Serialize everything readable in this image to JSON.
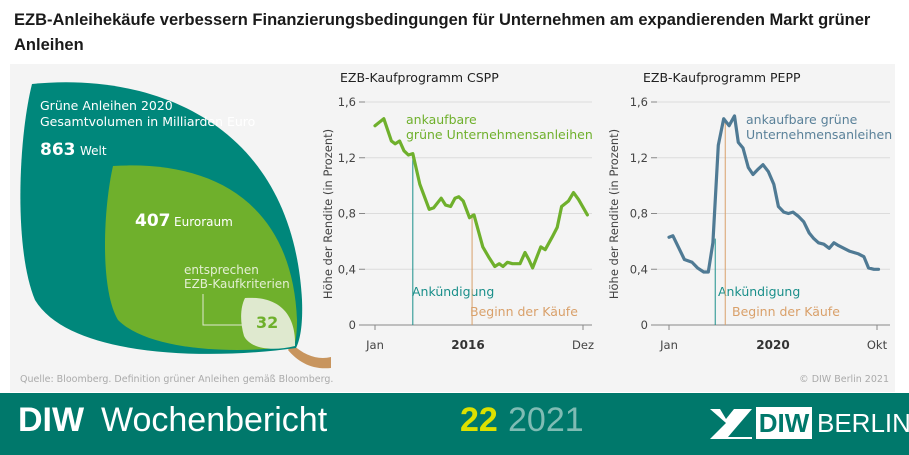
{
  "title": "EZB-Anleihekäufe verbessern Finanzierungsbedingungen für Unternehmen am expandierenden Markt grüner Anleihen",
  "leaf_graphic": {
    "heading_line1": "Grüne Anleihen 2020",
    "heading_line2": "Gesamtvolumen in Milliarden Euro",
    "world_value": "863",
    "world_label": "Welt",
    "euro_value": "407",
    "euro_label": "Euroraum",
    "ecb_label_line1": "entsprechen",
    "ecb_label_line2": "EZB-Kaufkriterien",
    "ecb_value": "32",
    "colors": {
      "world": "#00877b",
      "euro": "#6fb02c",
      "ecb": "#dfe9cf",
      "stem": "#c8955e"
    }
  },
  "chart_data": [
    {
      "type": "line",
      "title": "EZB-Kaufprogramm CSPP",
      "ylabel": "Höhe der Rendite (in Prozent)",
      "ylim": [
        0,
        1.6
      ],
      "yticks": [
        "0",
        "0,4",
        "0,8",
        "1,2",
        "1,6"
      ],
      "ytick_values": [
        0,
        0.4,
        0.8,
        1.2,
        1.6
      ],
      "xticks": [
        {
          "label": "Jan",
          "date": "2016-01-01"
        },
        {
          "label": "Dez",
          "date": "2016-12-01"
        }
      ],
      "year_label": "2016",
      "grid": true,
      "series": [
        {
          "name": "ankaufbare grüne Unternehmensanleihen",
          "label_line1": "ankaufbare",
          "label_line2": "grüne Unternehmensanleihen",
          "color": "#6fb02c",
          "x": [
            "2016-01-01",
            "2016-01-15",
            "2016-01-27",
            "2016-02-03",
            "2016-02-10",
            "2016-02-17",
            "2016-02-24",
            "2016-03-01",
            "2016-03-12",
            "2016-03-27",
            "2016-04-04",
            "2016-04-16",
            "2016-04-23",
            "2016-05-01",
            "2016-05-08",
            "2016-05-14",
            "2016-05-21",
            "2016-06-01",
            "2016-06-08",
            "2016-06-22",
            "2016-07-01",
            "2016-07-11",
            "2016-07-18",
            "2016-07-24",
            "2016-08-01",
            "2016-08-09",
            "2016-08-21",
            "2016-08-29",
            "2016-09-05",
            "2016-09-11",
            "2016-09-24",
            "2016-10-01",
            "2016-10-12",
            "2016-10-20",
            "2016-10-27",
            "2016-11-08",
            "2016-11-16",
            "2016-11-24",
            "2016-12-08"
          ],
          "y": [
            1.43,
            1.48,
            1.32,
            1.3,
            1.32,
            1.25,
            1.22,
            1.23,
            1.01,
            0.83,
            0.84,
            0.91,
            0.86,
            0.85,
            0.91,
            0.92,
            0.89,
            0.77,
            0.79,
            0.56,
            0.49,
            0.42,
            0.44,
            0.42,
            0.45,
            0.44,
            0.44,
            0.52,
            0.47,
            0.41,
            0.56,
            0.54,
            0.63,
            0.7,
            0.85,
            0.89,
            0.95,
            0.9,
            0.79
          ]
        }
      ],
      "annotations": [
        {
          "label": "Ankündigung",
          "date": "2016-03-01",
          "top": 1.22,
          "color": "#1a8f8a"
        },
        {
          "label": "Beginn der Käufe",
          "date": "2016-06-05",
          "top": 0.8,
          "color": "#d9a06a"
        }
      ]
    },
    {
      "type": "line",
      "title": "EZB-Kaufprogramm PEPP",
      "ylabel": "Höhe der Rendite (in Prozent)",
      "ylim": [
        0,
        1.6
      ],
      "yticks": [
        "0",
        "0,4",
        "0,8",
        "1,2",
        "1,6"
      ],
      "ytick_values": [
        0,
        0.4,
        0.8,
        1.2,
        1.6
      ],
      "xticks": [
        {
          "label": "Jan",
          "date": "2020-01-01"
        },
        {
          "label": "Okt",
          "date": "2020-10-01"
        }
      ],
      "year_label": "2020",
      "grid": true,
      "series": [
        {
          "name": "ankaufbare grüne Unternehmensanleihen",
          "label_line1": "ankaufbare grüne",
          "label_line2": "Unternehmensanleihen",
          "color": "#4f7a94",
          "x": [
            "2020-01-01",
            "2020-01-06",
            "2020-01-21",
            "2020-01-31",
            "2020-02-08",
            "2020-02-16",
            "2020-02-22",
            "2020-02-28",
            "2020-03-05",
            "2020-03-12",
            "2020-03-19",
            "2020-03-26",
            "2020-04-01",
            "2020-04-07",
            "2020-04-14",
            "2020-04-20",
            "2020-04-27",
            "2020-05-03",
            "2020-05-10",
            "2020-05-17",
            "2020-05-23",
            "2020-05-30",
            "2020-06-06",
            "2020-06-12",
            "2020-06-19",
            "2020-06-26",
            "2020-07-03",
            "2020-07-09",
            "2020-07-15",
            "2020-07-22",
            "2020-07-29",
            "2020-08-05",
            "2020-08-11",
            "2020-08-18",
            "2020-08-25",
            "2020-09-01",
            "2020-09-07",
            "2020-09-14",
            "2020-09-20",
            "2020-09-27",
            "2020-10-03"
          ],
          "y": [
            0.63,
            0.64,
            0.47,
            0.45,
            0.41,
            0.38,
            0.38,
            0.59,
            1.29,
            1.48,
            1.43,
            1.5,
            1.31,
            1.27,
            1.13,
            1.08,
            1.12,
            1.15,
            1.1,
            1.01,
            0.85,
            0.81,
            0.8,
            0.81,
            0.78,
            0.74,
            0.66,
            0.62,
            0.59,
            0.58,
            0.55,
            0.59,
            0.57,
            0.55,
            0.53,
            0.52,
            0.51,
            0.49,
            0.41,
            0.4,
            0.4
          ]
        }
      ],
      "annotations": [
        {
          "label": "Ankündigung",
          "date": "2020-03-01",
          "top": 0.62,
          "color": "#1a8f8a"
        },
        {
          "label": "Beginn der Käufe",
          "date": "2020-03-14",
          "top": 1.46,
          "color": "#d9a06a"
        }
      ]
    }
  ],
  "source": "Quelle:  Bloomberg. Definition grüner Anleihen gemäß Bloomberg.",
  "copyright": "© DIW Berlin 2021",
  "footer": {
    "brand_bold": "DIW",
    "brand_name": "Wochenbericht",
    "issue": "22",
    "year": "2021",
    "logo_box": "DIW",
    "logo_city": "BERLIN"
  }
}
